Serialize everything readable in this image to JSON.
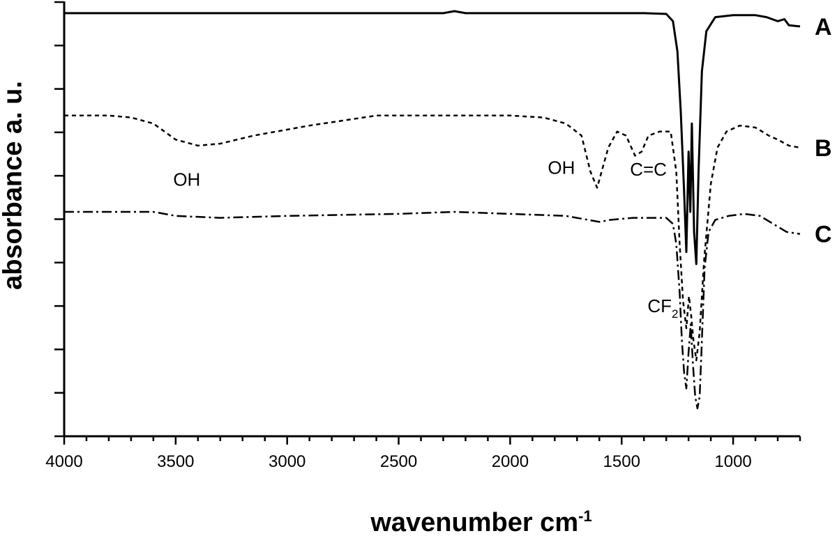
{
  "chart_data": {
    "type": "line",
    "title": "",
    "xlabel": "wavenumber cm",
    "xlabel_sup": "-1",
    "ylabel": "absorbance a. u.",
    "xlim": [
      4000,
      700
    ],
    "x_reversed": true,
    "x_ticks": [
      4000,
      3500,
      3000,
      2500,
      2000,
      1500,
      1000
    ],
    "y_ticks_visible": false,
    "grid": false,
    "series": [
      {
        "name": "A",
        "style": "solid",
        "points": [
          [
            4000,
            0.995
          ],
          [
            3500,
            0.995
          ],
          [
            3000,
            0.995
          ],
          [
            2500,
            0.995
          ],
          [
            2300,
            0.995
          ],
          [
            2250,
            1.0
          ],
          [
            2200,
            0.995
          ],
          [
            1800,
            0.995
          ],
          [
            1400,
            0.995
          ],
          [
            1300,
            0.993
          ],
          [
            1270,
            0.975
          ],
          [
            1250,
            0.9
          ],
          [
            1235,
            0.75
          ],
          [
            1220,
            0.55
          ],
          [
            1210,
            0.4
          ],
          [
            1200,
            0.65
          ],
          [
            1192,
            0.5
          ],
          [
            1185,
            0.72
          ],
          [
            1175,
            0.45
          ],
          [
            1165,
            0.37
          ],
          [
            1155,
            0.6
          ],
          [
            1140,
            0.85
          ],
          [
            1120,
            0.95
          ],
          [
            1080,
            0.985
          ],
          [
            1000,
            0.99
          ],
          [
            900,
            0.99
          ],
          [
            850,
            0.985
          ],
          [
            800,
            0.975
          ],
          [
            770,
            0.98
          ],
          [
            750,
            0.965
          ],
          [
            700,
            0.962
          ]
        ]
      },
      {
        "name": "B",
        "style": "dashed",
        "points": [
          [
            4000,
            0.74
          ],
          [
            3800,
            0.74
          ],
          [
            3700,
            0.735
          ],
          [
            3600,
            0.72
          ],
          [
            3500,
            0.68
          ],
          [
            3400,
            0.665
          ],
          [
            3300,
            0.67
          ],
          [
            3150,
            0.69
          ],
          [
            2900,
            0.715
          ],
          [
            2600,
            0.74
          ],
          [
            2000,
            0.74
          ],
          [
            1850,
            0.735
          ],
          [
            1750,
            0.72
          ],
          [
            1680,
            0.69
          ],
          [
            1640,
            0.6
          ],
          [
            1610,
            0.56
          ],
          [
            1590,
            0.6
          ],
          [
            1560,
            0.66
          ],
          [
            1520,
            0.7
          ],
          [
            1480,
            0.69
          ],
          [
            1440,
            0.64
          ],
          [
            1410,
            0.65
          ],
          [
            1380,
            0.69
          ],
          [
            1330,
            0.7
          ],
          [
            1280,
            0.7
          ],
          [
            1255,
            0.6
          ],
          [
            1240,
            0.42
          ],
          [
            1225,
            0.28
          ],
          [
            1210,
            0.21
          ],
          [
            1198,
            0.29
          ],
          [
            1188,
            0.24
          ],
          [
            1178,
            0.18
          ],
          [
            1165,
            0.13
          ],
          [
            1150,
            0.2
          ],
          [
            1130,
            0.38
          ],
          [
            1100,
            0.57
          ],
          [
            1070,
            0.66
          ],
          [
            1030,
            0.7
          ],
          [
            970,
            0.715
          ],
          [
            900,
            0.71
          ],
          [
            840,
            0.69
          ],
          [
            800,
            0.68
          ],
          [
            750,
            0.665
          ],
          [
            700,
            0.66
          ]
        ]
      },
      {
        "name": "C",
        "style": "dashdot",
        "points": [
          [
            4000,
            0.5
          ],
          [
            3600,
            0.5
          ],
          [
            3500,
            0.49
          ],
          [
            3300,
            0.485
          ],
          [
            3000,
            0.49
          ],
          [
            2500,
            0.495
          ],
          [
            2250,
            0.5
          ],
          [
            2000,
            0.495
          ],
          [
            1750,
            0.49
          ],
          [
            1650,
            0.48
          ],
          [
            1600,
            0.475
          ],
          [
            1550,
            0.48
          ],
          [
            1450,
            0.485
          ],
          [
            1300,
            0.485
          ],
          [
            1270,
            0.47
          ],
          [
            1255,
            0.42
          ],
          [
            1240,
            0.3
          ],
          [
            1230,
            0.18
          ],
          [
            1220,
            0.1
          ],
          [
            1210,
            0.06
          ],
          [
            1200,
            0.15
          ],
          [
            1190,
            0.22
          ],
          [
            1180,
            0.12
          ],
          [
            1170,
            0.04
          ],
          [
            1160,
            0.01
          ],
          [
            1150,
            0.04
          ],
          [
            1140,
            0.18
          ],
          [
            1128,
            0.36
          ],
          [
            1110,
            0.45
          ],
          [
            1080,
            0.48
          ],
          [
            1020,
            0.49
          ],
          [
            950,
            0.495
          ],
          [
            880,
            0.49
          ],
          [
            820,
            0.47
          ],
          [
            760,
            0.45
          ],
          [
            700,
            0.445
          ]
        ]
      }
    ],
    "annotations": [
      {
        "text": "OH",
        "x": 3450,
        "y": 0.565
      },
      {
        "text": "OH",
        "x": 1770,
        "y": 0.595
      },
      {
        "text": "C=C",
        "x": 1380,
        "y": 0.59
      },
      {
        "text": "CF",
        "sub": "2",
        "x": 1315,
        "y": 0.25
      }
    ],
    "series_labels": [
      "A",
      "B",
      "C"
    ]
  }
}
